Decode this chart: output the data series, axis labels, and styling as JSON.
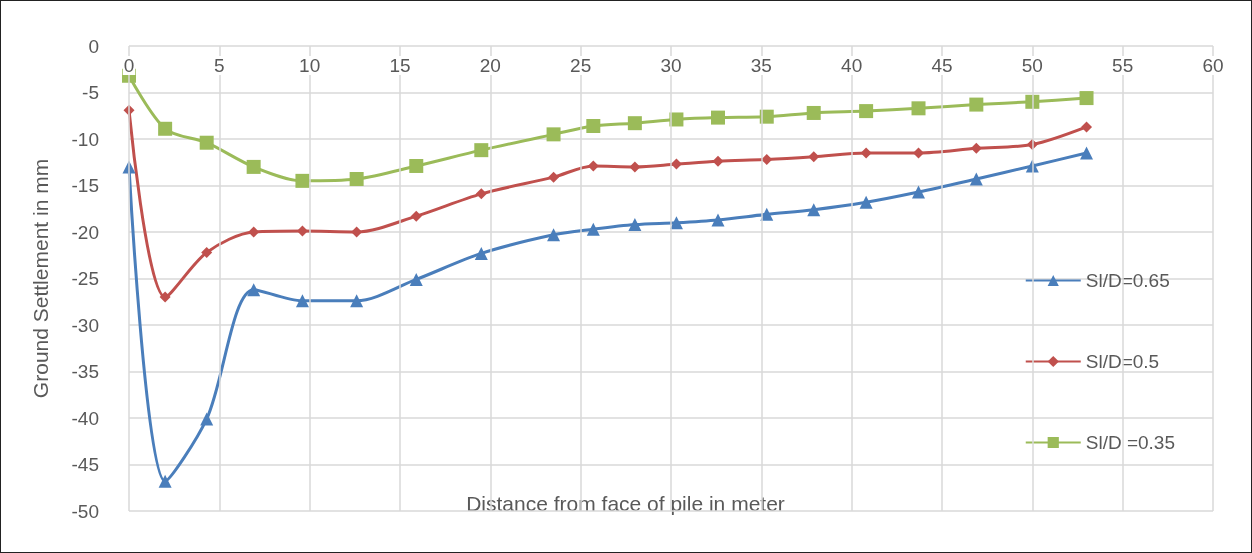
{
  "chart_data": {
    "type": "line",
    "xlabel": "Distance from face of pile in meter",
    "ylabel": "Ground Settlement in mm",
    "xlim": [
      0,
      60
    ],
    "xticks": [
      0,
      5,
      10,
      15,
      20,
      25,
      30,
      35,
      40,
      45,
      50,
      55,
      60
    ],
    "ylim": [
      -50,
      0
    ],
    "yticks": [
      0,
      -5,
      -10,
      -15,
      -20,
      -25,
      -30,
      -35,
      -40,
      -45,
      -50
    ],
    "grid": true,
    "legend": "right",
    "line_style": "solid",
    "x": [
      0,
      2.0,
      4.3,
      6.9,
      9.6,
      12.6,
      15.9,
      19.5,
      23.5,
      25.7,
      28.0,
      30.3,
      32.6,
      35.3,
      37.9,
      40.8,
      43.7,
      46.9,
      50.0,
      53.0
    ],
    "series": [
      {
        "name": "Sl/D=0.65",
        "color": "#4a7ebb",
        "marker": "triangle",
        "values": [
          -13,
          -46.8,
          -40.1,
          -26.2,
          -27.4,
          -27.4,
          -25.1,
          -22.3,
          -20.3,
          -19.7,
          -19.2,
          -19.0,
          -18.7,
          -18.1,
          -17.6,
          -16.8,
          -15.7,
          -14.3,
          -12.9,
          -11.5
        ]
      },
      {
        "name": "Sl/D=0.5",
        "color": "#c0504d",
        "marker": "diamond",
        "values": [
          -6.9,
          -27,
          -22.2,
          -20.0,
          -19.9,
          -20.0,
          -18.3,
          -15.9,
          -14.1,
          -12.9,
          -13.0,
          -12.7,
          -12.4,
          -12.2,
          -11.9,
          -11.5,
          -11.5,
          -11.0,
          -10.6,
          -8.7
        ]
      },
      {
        "name": "Sl/D =0.35",
        "color": "#9bbb59",
        "marker": "square",
        "values": [
          -3.2,
          -8.9,
          -10.4,
          -13.0,
          -14.5,
          -14.3,
          -12.9,
          -11.2,
          -9.5,
          -8.6,
          -8.3,
          -7.9,
          -7.7,
          -7.6,
          -7.2,
          -7.0,
          -6.7,
          -6.3,
          -6.0,
          -5.6
        ]
      }
    ]
  }
}
